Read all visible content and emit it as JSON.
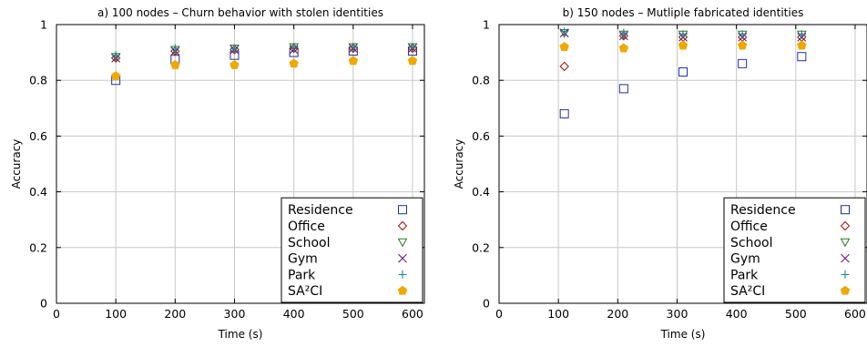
{
  "chart_data": [
    {
      "type": "scatter",
      "title": "a) 100 nodes – Churn behavior with stolen identities",
      "xlabel": "Time (s)",
      "ylabel": "Accuracy",
      "xlim": [
        0,
        620
      ],
      "ylim": [
        0,
        1
      ],
      "xticks": [
        "0",
        "100",
        "200",
        "300",
        "400",
        "500",
        "600"
      ],
      "yticks": [
        "0",
        "0.2",
        "0.4",
        "0.6",
        "0.8",
        "1"
      ],
      "grid": true,
      "legend_placement": "bottom-right",
      "series": [
        {
          "name": "Residence",
          "marker": "square",
          "color": "#1f2fa8",
          "x": [
            100,
            200,
            300,
            400,
            500,
            600
          ],
          "y": [
            0.8,
            0.875,
            0.89,
            0.9,
            0.905,
            0.905
          ]
        },
        {
          "name": "Office",
          "marker": "diamond",
          "color": "#a01010",
          "x": [
            100,
            200,
            300,
            400,
            500,
            600
          ],
          "y": [
            0.88,
            0.905,
            0.91,
            0.915,
            0.915,
            0.915
          ]
        },
        {
          "name": "School",
          "marker": "triangle",
          "color": "#2e7d1e",
          "x": [
            100,
            200,
            300,
            400,
            500,
            600
          ],
          "y": [
            0.885,
            0.91,
            0.915,
            0.92,
            0.92,
            0.92
          ]
        },
        {
          "name": "Gym",
          "marker": "x",
          "color": "#6a1a7a",
          "x": [
            100,
            200,
            300,
            400,
            500,
            600
          ],
          "y": [
            0.88,
            0.905,
            0.91,
            0.91,
            0.915,
            0.915
          ]
        },
        {
          "name": "Park",
          "marker": "plus",
          "color": "#1a8aa0",
          "x": [
            100,
            200,
            300,
            400,
            500,
            600
          ],
          "y": [
            0.89,
            0.915,
            0.915,
            0.92,
            0.92,
            0.92
          ]
        },
        {
          "name": "SA²CI",
          "marker": "pentagon",
          "color": "#f0a800",
          "x": [
            100,
            200,
            300,
            400,
            500,
            600
          ],
          "y": [
            0.815,
            0.855,
            0.855,
            0.86,
            0.87,
            0.87
          ]
        }
      ]
    },
    {
      "type": "scatter",
      "title": "b) 150 nodes – Mutliple fabricated identities",
      "xlabel": "Time (s)",
      "ylabel": "Accuracy",
      "xlim": [
        0,
        620
      ],
      "ylim": [
        0,
        1
      ],
      "xticks": [
        "0",
        "100",
        "200",
        "300",
        "400",
        "500",
        "600"
      ],
      "yticks": [
        "0",
        "0.2",
        "0.4",
        "0.6",
        "0.8",
        "1"
      ],
      "grid": true,
      "legend_placement": "bottom-right",
      "series": [
        {
          "name": "Residence",
          "marker": "square",
          "color": "#1f2fa8",
          "x": [
            110,
            210,
            310,
            410,
            510
          ],
          "y": [
            0.68,
            0.77,
            0.83,
            0.86,
            0.885
          ]
        },
        {
          "name": "Office",
          "marker": "diamond",
          "color": "#a01010",
          "x": [
            110,
            210,
            310,
            410,
            510
          ],
          "y": [
            0.85,
            0.96,
            0.955,
            0.955,
            0.955
          ]
        },
        {
          "name": "School",
          "marker": "triangle",
          "color": "#2e7d1e",
          "x": [
            110,
            210,
            310,
            410,
            510
          ],
          "y": [
            0.97,
            0.965,
            0.965,
            0.965,
            0.965
          ]
        },
        {
          "name": "Gym",
          "marker": "x",
          "color": "#6a1a7a",
          "x": [
            110,
            210,
            310,
            410,
            510
          ],
          "y": [
            0.97,
            0.96,
            0.955,
            0.955,
            0.955
          ]
        },
        {
          "name": "Park",
          "marker": "plus",
          "color": "#1a8aa0",
          "x": [
            110,
            210,
            310,
            410,
            510
          ],
          "y": [
            0.975,
            0.97,
            0.965,
            0.965,
            0.965
          ]
        },
        {
          "name": "SA²CI",
          "marker": "pentagon",
          "color": "#f0a800",
          "x": [
            110,
            210,
            310,
            410,
            510
          ],
          "y": [
            0.92,
            0.915,
            0.925,
            0.925,
            0.925
          ]
        }
      ]
    }
  ]
}
